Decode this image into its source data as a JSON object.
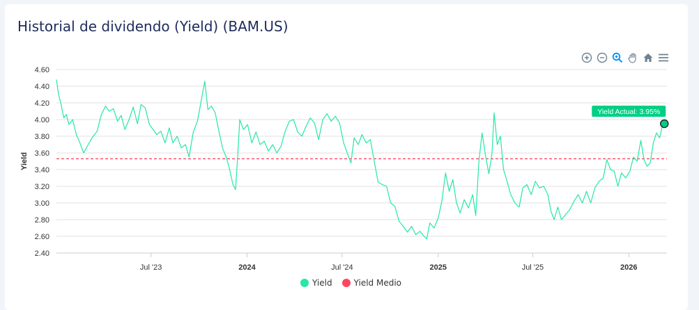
{
  "title": "Historial de dividendo (Yield) (BAM.US)",
  "toolbar": [
    {
      "name": "zoom-in-icon"
    },
    {
      "name": "zoom-out-icon"
    },
    {
      "name": "zoom-select-icon"
    },
    {
      "name": "pan-hand-icon"
    },
    {
      "name": "home-reset-icon"
    },
    {
      "name": "menu-icon"
    }
  ],
  "colors": {
    "yield": "#26e7a6",
    "average": "#ff4560",
    "axis": "#333333",
    "grid": "#e0e0e0",
    "badge": "#00d084"
  },
  "legend": {
    "yield": "Yield",
    "average": "Yield Medio"
  },
  "chart_data": {
    "type": "line",
    "title": "Historial de dividendo (Yield) (BAM.US)",
    "ylabel": "Yield",
    "xlabel": "",
    "ylim": [
      2.4,
      4.6
    ],
    "yticks": [
      "4.60",
      "4.40",
      "4.20",
      "4.00",
      "3.80",
      "3.60",
      "3.40",
      "3.20",
      "3.00",
      "2.80",
      "2.60",
      "2.40"
    ],
    "xrange": [
      "2023-01-01",
      "2026-03-15"
    ],
    "xticks": [
      {
        "date": "2023-07-01",
        "label": "Jul '23",
        "bold": false
      },
      {
        "date": "2024-01-01",
        "label": "2024",
        "bold": true
      },
      {
        "date": "2024-07-01",
        "label": "Jul '24",
        "bold": false
      },
      {
        "date": "2025-01-01",
        "label": "2025",
        "bold": true
      },
      {
        "date": "2025-07-01",
        "label": "Jul '25",
        "bold": false
      },
      {
        "date": "2026-01-01",
        "label": "2026",
        "bold": true
      }
    ],
    "average": 3.53,
    "annotation": {
      "label": "Yield Actual: 3.95%",
      "date": "2026-03-10",
      "value": 3.95
    },
    "series": [
      {
        "name": "Yield",
        "points": [
          [
            "2023-01-01",
            4.48
          ],
          [
            "2023-01-05",
            4.3
          ],
          [
            "2023-01-10",
            4.18
          ],
          [
            "2023-01-15",
            4.02
          ],
          [
            "2023-01-20",
            4.06
          ],
          [
            "2023-01-25",
            3.94
          ],
          [
            "2023-02-01",
            4.0
          ],
          [
            "2023-02-08",
            3.82
          ],
          [
            "2023-02-15",
            3.72
          ],
          [
            "2023-02-22",
            3.6
          ],
          [
            "2023-03-01",
            3.68
          ],
          [
            "2023-03-10",
            3.78
          ],
          [
            "2023-03-20",
            3.86
          ],
          [
            "2023-03-28",
            4.06
          ],
          [
            "2023-04-05",
            4.16
          ],
          [
            "2023-04-12",
            4.1
          ],
          [
            "2023-04-20",
            4.13
          ],
          [
            "2023-04-28",
            3.98
          ],
          [
            "2023-05-05",
            4.05
          ],
          [
            "2023-05-12",
            3.88
          ],
          [
            "2023-05-20",
            4.0
          ],
          [
            "2023-05-28",
            4.15
          ],
          [
            "2023-06-05",
            3.95
          ],
          [
            "2023-06-12",
            4.18
          ],
          [
            "2023-06-20",
            4.14
          ],
          [
            "2023-06-28",
            3.94
          ],
          [
            "2023-07-05",
            3.88
          ],
          [
            "2023-07-12",
            3.82
          ],
          [
            "2023-07-20",
            3.86
          ],
          [
            "2023-07-28",
            3.72
          ],
          [
            "2023-08-05",
            3.9
          ],
          [
            "2023-08-12",
            3.72
          ],
          [
            "2023-08-20",
            3.8
          ],
          [
            "2023-08-28",
            3.66
          ],
          [
            "2023-09-05",
            3.7
          ],
          [
            "2023-09-12",
            3.55
          ],
          [
            "2023-09-20",
            3.85
          ],
          [
            "2023-09-28",
            3.98
          ],
          [
            "2023-10-05",
            4.22
          ],
          [
            "2023-10-12",
            4.46
          ],
          [
            "2023-10-18",
            4.12
          ],
          [
            "2023-10-25",
            4.16
          ],
          [
            "2023-11-01",
            4.08
          ],
          [
            "2023-11-08",
            3.86
          ],
          [
            "2023-11-15",
            3.66
          ],
          [
            "2023-11-22",
            3.55
          ],
          [
            "2023-11-28",
            3.42
          ],
          [
            "2023-12-05",
            3.22
          ],
          [
            "2023-12-10",
            3.16
          ],
          [
            "2023-12-14",
            3.55
          ],
          [
            "2023-12-18",
            4.0
          ],
          [
            "2023-12-25",
            3.88
          ],
          [
            "2024-01-02",
            3.94
          ],
          [
            "2024-01-10",
            3.72
          ],
          [
            "2024-01-18",
            3.85
          ],
          [
            "2024-01-26",
            3.7
          ],
          [
            "2024-02-03",
            3.74
          ],
          [
            "2024-02-11",
            3.62
          ],
          [
            "2024-02-19",
            3.7
          ],
          [
            "2024-02-27",
            3.6
          ],
          [
            "2024-03-06",
            3.68
          ],
          [
            "2024-03-14",
            3.86
          ],
          [
            "2024-03-22",
            3.98
          ],
          [
            "2024-03-30",
            4.0
          ],
          [
            "2024-04-07",
            3.85
          ],
          [
            "2024-04-15",
            3.8
          ],
          [
            "2024-04-23",
            3.92
          ],
          [
            "2024-05-01",
            4.02
          ],
          [
            "2024-05-09",
            3.96
          ],
          [
            "2024-05-17",
            3.76
          ],
          [
            "2024-05-25",
            4.0
          ],
          [
            "2024-06-02",
            4.07
          ],
          [
            "2024-06-10",
            3.98
          ],
          [
            "2024-06-18",
            4.04
          ],
          [
            "2024-06-26",
            3.96
          ],
          [
            "2024-07-04",
            3.72
          ],
          [
            "2024-07-12",
            3.58
          ],
          [
            "2024-07-18",
            3.48
          ],
          [
            "2024-07-24",
            3.78
          ],
          [
            "2024-08-01",
            3.7
          ],
          [
            "2024-08-08",
            3.82
          ],
          [
            "2024-08-16",
            3.72
          ],
          [
            "2024-08-24",
            3.76
          ],
          [
            "2024-09-01",
            3.48
          ],
          [
            "2024-09-08",
            3.25
          ],
          [
            "2024-09-16",
            3.22
          ],
          [
            "2024-09-24",
            3.2
          ],
          [
            "2024-10-02",
            3.0
          ],
          [
            "2024-10-10",
            2.96
          ],
          [
            "2024-10-18",
            2.78
          ],
          [
            "2024-10-26",
            2.72
          ],
          [
            "2024-11-03",
            2.65
          ],
          [
            "2024-11-11",
            2.72
          ],
          [
            "2024-11-19",
            2.62
          ],
          [
            "2024-11-27",
            2.66
          ],
          [
            "2024-12-05",
            2.6
          ],
          [
            "2024-12-10",
            2.57
          ],
          [
            "2024-12-16",
            2.76
          ],
          [
            "2024-12-24",
            2.7
          ],
          [
            "2025-01-01",
            2.82
          ],
          [
            "2025-01-08",
            3.02
          ],
          [
            "2025-01-15",
            3.36
          ],
          [
            "2025-01-22",
            3.14
          ],
          [
            "2025-01-29",
            3.28
          ],
          [
            "2025-02-05",
            3.0
          ],
          [
            "2025-02-12",
            2.88
          ],
          [
            "2025-02-20",
            3.04
          ],
          [
            "2025-02-28",
            2.94
          ],
          [
            "2025-03-08",
            3.1
          ],
          [
            "2025-03-14",
            2.85
          ],
          [
            "2025-03-20",
            3.5
          ],
          [
            "2025-03-26",
            3.84
          ],
          [
            "2025-04-02",
            3.55
          ],
          [
            "2025-04-08",
            3.35
          ],
          [
            "2025-04-14",
            3.6
          ],
          [
            "2025-04-18",
            4.08
          ],
          [
            "2025-04-24",
            3.7
          ],
          [
            "2025-04-30",
            3.8
          ],
          [
            "2025-05-06",
            3.4
          ],
          [
            "2025-05-12",
            3.28
          ],
          [
            "2025-05-20",
            3.1
          ],
          [
            "2025-05-28",
            3.0
          ],
          [
            "2025-06-05",
            2.95
          ],
          [
            "2025-06-12",
            3.18
          ],
          [
            "2025-06-20",
            3.22
          ],
          [
            "2025-06-28",
            3.1
          ],
          [
            "2025-07-06",
            3.26
          ],
          [
            "2025-07-14",
            3.18
          ],
          [
            "2025-07-22",
            3.2
          ],
          [
            "2025-07-30",
            3.1
          ],
          [
            "2025-08-05",
            2.9
          ],
          [
            "2025-08-11",
            2.8
          ],
          [
            "2025-08-18",
            2.95
          ],
          [
            "2025-08-25",
            2.8
          ],
          [
            "2025-09-02",
            2.86
          ],
          [
            "2025-09-10",
            2.92
          ],
          [
            "2025-09-18",
            3.02
          ],
          [
            "2025-09-26",
            3.1
          ],
          [
            "2025-10-04",
            3.0
          ],
          [
            "2025-10-12",
            3.14
          ],
          [
            "2025-10-20",
            3.0
          ],
          [
            "2025-10-28",
            3.18
          ],
          [
            "2025-11-05",
            3.26
          ],
          [
            "2025-11-13",
            3.3
          ],
          [
            "2025-11-20",
            3.52
          ],
          [
            "2025-11-27",
            3.4
          ],
          [
            "2025-12-04",
            3.38
          ],
          [
            "2025-12-11",
            3.2
          ],
          [
            "2025-12-18",
            3.36
          ],
          [
            "2025-12-26",
            3.3
          ],
          [
            "2026-01-03",
            3.38
          ],
          [
            "2026-01-10",
            3.55
          ],
          [
            "2026-01-17",
            3.5
          ],
          [
            "2026-01-24",
            3.75
          ],
          [
            "2026-01-30",
            3.52
          ],
          [
            "2026-02-05",
            3.44
          ],
          [
            "2026-02-11",
            3.48
          ],
          [
            "2026-02-17",
            3.72
          ],
          [
            "2026-02-23",
            3.84
          ],
          [
            "2026-03-01",
            3.78
          ],
          [
            "2026-03-06",
            3.92
          ],
          [
            "2026-03-10",
            3.95
          ]
        ]
      }
    ]
  }
}
